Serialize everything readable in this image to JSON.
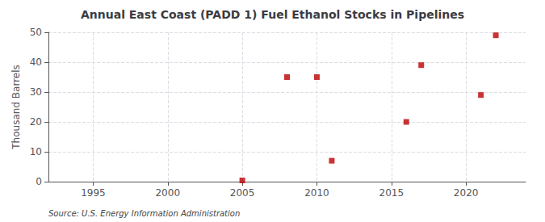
{
  "chart_data": {
    "type": "scatter",
    "title": "Annual East Coast (PADD 1) Fuel Ethanol Stocks in Pipelines",
    "ylabel": "Thousand Barrels",
    "annotation": "Source: U.S. Energy Information Administration",
    "x": [
      2005,
      2008,
      2010,
      2011,
      2016,
      2017,
      2021,
      2022
    ],
    "values": [
      0.4,
      35,
      35,
      7,
      20,
      39,
      29,
      49
    ],
    "xlim": [
      1992,
      2024
    ],
    "ylim": [
      0,
      50
    ],
    "xticks": [
      1995,
      2000,
      2005,
      2010,
      2015,
      2020
    ],
    "yticks": [
      0,
      10,
      20,
      30,
      40,
      50
    ],
    "color": "#bb0000",
    "marker": "square",
    "grid": true
  }
}
